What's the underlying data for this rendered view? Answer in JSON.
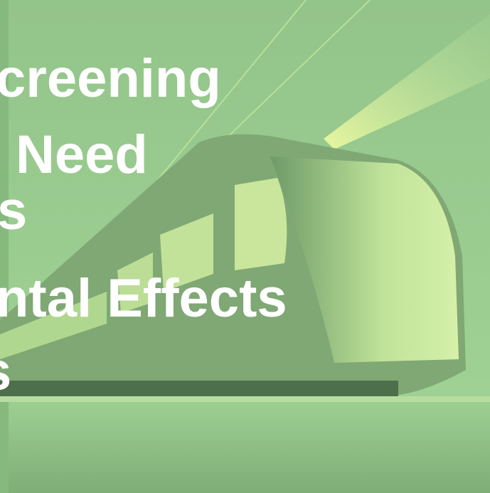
{
  "headline": {
    "lines": [
      "creening",
      "Need",
      "s",
      "ntal Effects",
      "s"
    ]
  }
}
